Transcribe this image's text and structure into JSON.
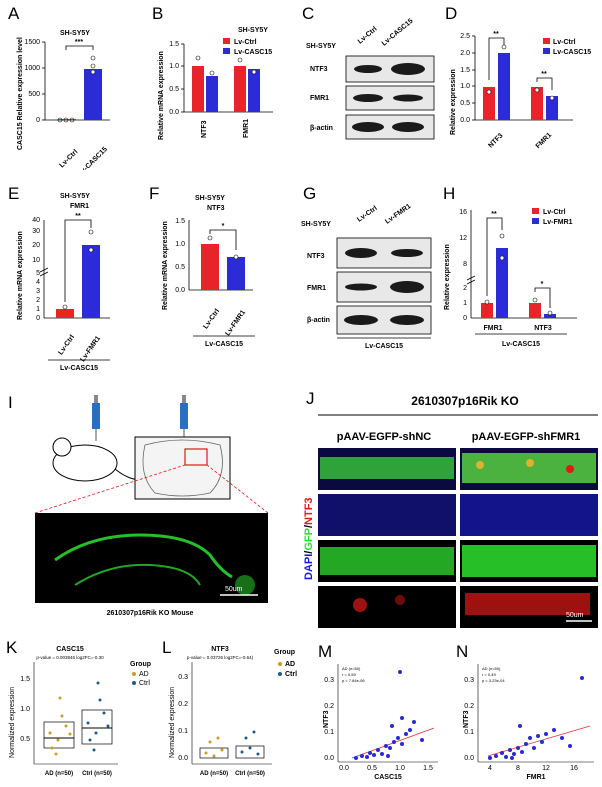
{
  "figure": {
    "panels": {
      "A": {
        "letter": "A",
        "title": "SH-SY5Y",
        "ylabel": "CASC15 Relative expression level",
        "sig": "***",
        "yticks": [
          "0",
          "500",
          "1000",
          "1500"
        ],
        "groups": [
          "Lv-Ctrl",
          "Lv-CASC15"
        ]
      },
      "B": {
        "letter": "B",
        "title": "SH-SY5Y",
        "ylabel": "Relative mRNA expression",
        "yticks": [
          "0.0",
          "0.5",
          "1.0",
          "1.5"
        ],
        "genes": [
          "NTF3",
          "FMR1"
        ],
        "legend": [
          "Lv-Ctrl",
          "Lv-CASC15"
        ]
      },
      "C": {
        "letter": "C",
        "cell": "SH-SY5Y",
        "lanes": [
          "Lv-Ctrl",
          "Lv-CASC15"
        ],
        "blots": [
          "NTF3",
          "FMR1",
          "β-actin"
        ]
      },
      "D": {
        "letter": "D",
        "ylabel": "Relative expression",
        "yticks": [
          "0.0",
          "0.5",
          "1.0",
          "1.5",
          "2.0",
          "2.5"
        ],
        "genes": [
          "NTF3",
          "FMR1"
        ],
        "legend": [
          "Lv-Ctrl",
          "Lv-CASC15"
        ],
        "sig1": "**",
        "sig2": "**"
      },
      "E": {
        "letter": "E",
        "title1": "SH-SY5Y",
        "title2": "FMR1",
        "ylabel": "Relative mRNA expression",
        "sig": "**",
        "yticks": [
          "0",
          "1",
          "2",
          "3",
          "4",
          "5",
          "10",
          "20",
          "30",
          "40"
        ],
        "groups": [
          "Lv-Ctrl",
          "Lv-FMR1"
        ],
        "bottom": "Lv-CASC15"
      },
      "F": {
        "letter": "F",
        "title1": "SH-SY5Y",
        "title2": "NTF3",
        "ylabel": "Relative mRNA expression",
        "sig": "*",
        "yticks": [
          "0.0",
          "0.5",
          "1.0",
          "1.5"
        ],
        "groups": [
          "Lv-Ctrl",
          "Lv-FMR1"
        ],
        "bottom": "Lv-CASC15"
      },
      "G": {
        "letter": "G",
        "cell": "SH-SY5Y",
        "lanes": [
          "Lv-Ctrl",
          "Lv-FMR1"
        ],
        "blots": [
          "NTF3",
          "FMR1",
          "β-actin"
        ],
        "bottom": "Lv-CASC15"
      },
      "H": {
        "letter": "H",
        "ylabel": "Relative expression",
        "yticks": [
          "0",
          "1",
          "2",
          "8",
          "12",
          "16"
        ],
        "genes": [
          "FMR1",
          "NTF3"
        ],
        "legend": [
          "Lv-Ctrl",
          "Lv-FMR1"
        ],
        "sig1": "**",
        "sig2": "*",
        "bottom": "Lv-CASC15"
      },
      "I": {
        "letter": "I",
        "caption": "2610307p16Rik KO Mouse",
        "scale": "50um"
      },
      "J": {
        "letter": "J",
        "title": "2610307p16Rik  KO",
        "col1": "pAAV-EGFP-shNC",
        "col2": "pAAV-EGFP-shFMR1",
        "rowlabel": [
          "DAPI",
          "/",
          "GFP",
          "/",
          "NTF3"
        ],
        "scale": "50um"
      },
      "K": {
        "letter": "K",
        "title": "CASC15",
        "stats": "p-value = 0.003846 log2FC=-0.30",
        "ylabel": "Normalized expression",
        "yticks": [
          "0.5",
          "1.0",
          "1.5"
        ],
        "groups": [
          "AD (n=50)",
          "Ctrl (n=50)"
        ],
        "legend_title": "Group",
        "legend": [
          "AD",
          "Ctrl"
        ]
      },
      "L": {
        "letter": "L",
        "title": "NTF3",
        "stats": "p-value = 0.03726 log2FC=-0.64)",
        "ylabel": "Normalized expression",
        "yticks": [
          "0.0",
          "0.1",
          "0.2",
          "0.3"
        ],
        "groups": [
          "AD (n=50)",
          "Ctrl (n=50)"
        ],
        "legend_title": "Group",
        "legend": [
          "AD",
          "Ctrl"
        ]
      },
      "M": {
        "letter": "M",
        "ylabel": "NTF3",
        "xlabel": "CASC15",
        "stats": [
          "AD (n=50)",
          "r = 0.59",
          "p = 7.84e-06"
        ],
        "yticks": [
          "0.0",
          "0.1",
          "0.2",
          "0.3"
        ],
        "xticks": [
          "0.0",
          "0.5",
          "1.0",
          "1.5"
        ]
      },
      "N": {
        "letter": "N",
        "ylabel": "NTF3",
        "xlabel": "FMR1",
        "stats": [
          "AD (n=50)",
          "r = 0.49",
          "p = 3.23e-04"
        ],
        "yticks": [
          "0.0",
          "0.1",
          "0.2",
          "0.3"
        ],
        "xticks": [
          "4",
          "8",
          "12",
          "16"
        ]
      }
    },
    "colors": {
      "ctrl": "#e8232a",
      "treat": "#2b2bd8",
      "ad": "#c8a020",
      "ctrlk": "#1f5a8a",
      "scatter": "#2a2ad0",
      "fit": "#e03030",
      "green": "#2ee02e",
      "blue": "#1a1ad0",
      "red": "#e01818"
    },
    "chart_data": [
      {
        "type": "bar",
        "panel": "A",
        "categories": [
          "Lv-Ctrl",
          "Lv-CASC15"
        ],
        "values": [
          1,
          980
        ],
        "ylim": [
          0,
          1500
        ]
      },
      {
        "type": "bar",
        "panel": "B",
        "categories": [
          "NTF3",
          "FMR1"
        ],
        "series": [
          {
            "name": "Lv-Ctrl",
            "values": [
              1.0,
              1.0
            ]
          },
          {
            "name": "Lv-CASC15",
            "values": [
              0.78,
              0.93
            ]
          }
        ],
        "ylim": [
          0,
          1.5
        ]
      },
      {
        "type": "bar",
        "panel": "D",
        "categories": [
          "NTF3",
          "FMR1"
        ],
        "series": [
          {
            "name": "Lv-Ctrl",
            "values": [
              1.0,
              1.0
            ]
          },
          {
            "name": "Lv-CASC15",
            "values": [
              2.0,
              0.72
            ]
          }
        ],
        "ylim": [
          0,
          2.5
        ]
      },
      {
        "type": "bar",
        "panel": "E",
        "categories": [
          "Lv-Ctrl",
          "Lv-FMR1"
        ],
        "values": [
          1.0,
          20.5
        ]
      },
      {
        "type": "bar",
        "panel": "F",
        "categories": [
          "Lv-Ctrl",
          "Lv-FMR1"
        ],
        "values": [
          1.0,
          0.72
        ],
        "ylim": [
          0,
          1.5
        ]
      },
      {
        "type": "bar",
        "panel": "H",
        "categories": [
          "FMR1",
          "NTF3"
        ],
        "series": [
          {
            "name": "Lv-Ctrl",
            "values": [
              1.0,
              1.0
            ]
          },
          {
            "name": "Lv-FMR1",
            "values": [
              10.5,
              0.3
            ]
          }
        ]
      }
    ]
  }
}
